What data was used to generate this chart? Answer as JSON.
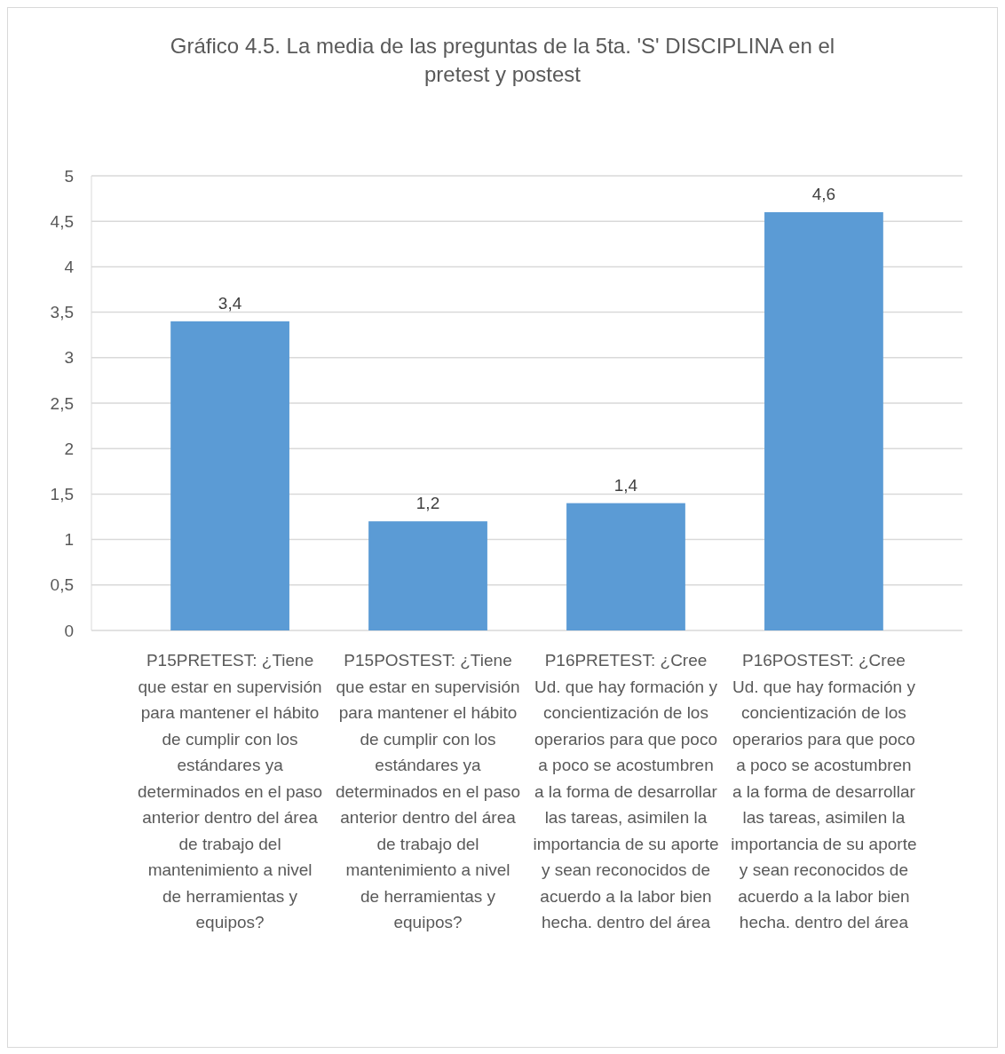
{
  "chart_data": {
    "type": "bar",
    "title": "Gráfico 4.5. La media de las preguntas de la 5ta. 'S'  DISCIPLINA en el pretest y postest",
    "categories": [
      "P15PRETEST: ¿Tiene que estar en supervisión para mantener el hábito de cumplir con los estándares ya determinados en el paso anterior dentro del área de trabajo del mantenimiento a nivel de herramientas y equipos?",
      "P15POSTEST: ¿Tiene que estar en supervisión para mantener el hábito de cumplir con los estándares ya determinados en el paso anterior dentro del área de trabajo del mantenimiento a nivel de herramientas y equipos?",
      "P16PRETEST: ¿Cree Ud. que hay formación y concientización de los operarios para que poco a poco se acostumbren a la forma de desarrollar las tareas, asimilen la importancia de su aporte y sean reconocidos de acuerdo a la labor bien hecha. dentro del área",
      "P16POSTEST: ¿Cree Ud. que hay formación y concientización de los operarios para que poco a poco se acostumbren a la forma de desarrollar las tareas, asimilen la importancia de su aporte y sean reconocidos de acuerdo a la labor bien hecha. dentro del área"
    ],
    "values": [
      3.4,
      1.2,
      1.4,
      4.6
    ],
    "value_labels": [
      "3,4",
      "1,2",
      "1,4",
      "4,6"
    ],
    "color": "#5b9bd5",
    "ylim": [
      0,
      5
    ],
    "yticks": [
      0,
      {
        "value": 0.5,
        "label": "0,5"
      },
      1,
      {
        "value": 1.5,
        "label": "1,5"
      },
      2,
      {
        "value": 2.5,
        "label": "2,5"
      },
      3,
      {
        "value": 3.5,
        "label": "3,5"
      },
      4,
      {
        "value": 4.5,
        "label": "4,5"
      },
      5
    ],
    "grid": true
  }
}
